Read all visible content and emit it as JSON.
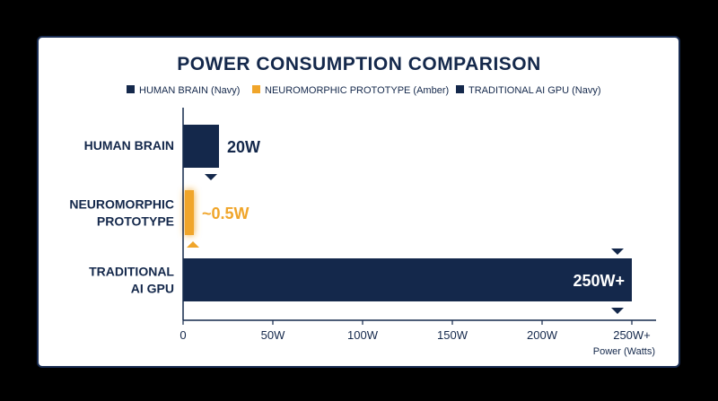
{
  "colors": {
    "navy": "#14284b",
    "amber": "#f0a52a"
  },
  "chart_data": {
    "type": "bar",
    "orientation": "horizontal",
    "title": "POWER CONSUMPTION COMPARISON",
    "legend": [
      {
        "label": "HUMAN BRAIN (Navy)",
        "color": "#14284b"
      },
      {
        "label": "NEUROMORPHIC PROTOTYPE (Amber)",
        "color": "#f0a52a"
      },
      {
        "label": "TRADITIONAL AI GPU (Navy)",
        "color": "#14284b"
      }
    ],
    "legend_position": "top",
    "categories": [
      {
        "lines": [
          "HUMAN BRAIN"
        ],
        "value": 20,
        "value_label": "20W",
        "color": "#14284b",
        "label_position": "outside",
        "marker": "below"
      },
      {
        "lines": [
          "NEUROMORPHIC",
          "PROTOTYPE"
        ],
        "value": 0.5,
        "value_label": "~0.5W",
        "color": "#f0a52a",
        "label_position": "outside",
        "marker": "below",
        "glow": true
      },
      {
        "lines": [
          "TRADITIONAL",
          "AI GPU"
        ],
        "value": 250,
        "value_label": "250W+",
        "color": "#14284b",
        "label_position": "inside",
        "marker": "above-and-below"
      }
    ],
    "x_ticks": [
      {
        "value": 0,
        "label": "0"
      },
      {
        "value": 50,
        "label": "50W"
      },
      {
        "value": 100,
        "label": "100W"
      },
      {
        "value": 150,
        "label": "150W"
      },
      {
        "value": 200,
        "label": "200W"
      },
      {
        "value": 250,
        "label": "250W+"
      }
    ],
    "xlim": [
      0,
      256
    ],
    "xlabel": "Power (Watts)",
    "grid": false
  }
}
